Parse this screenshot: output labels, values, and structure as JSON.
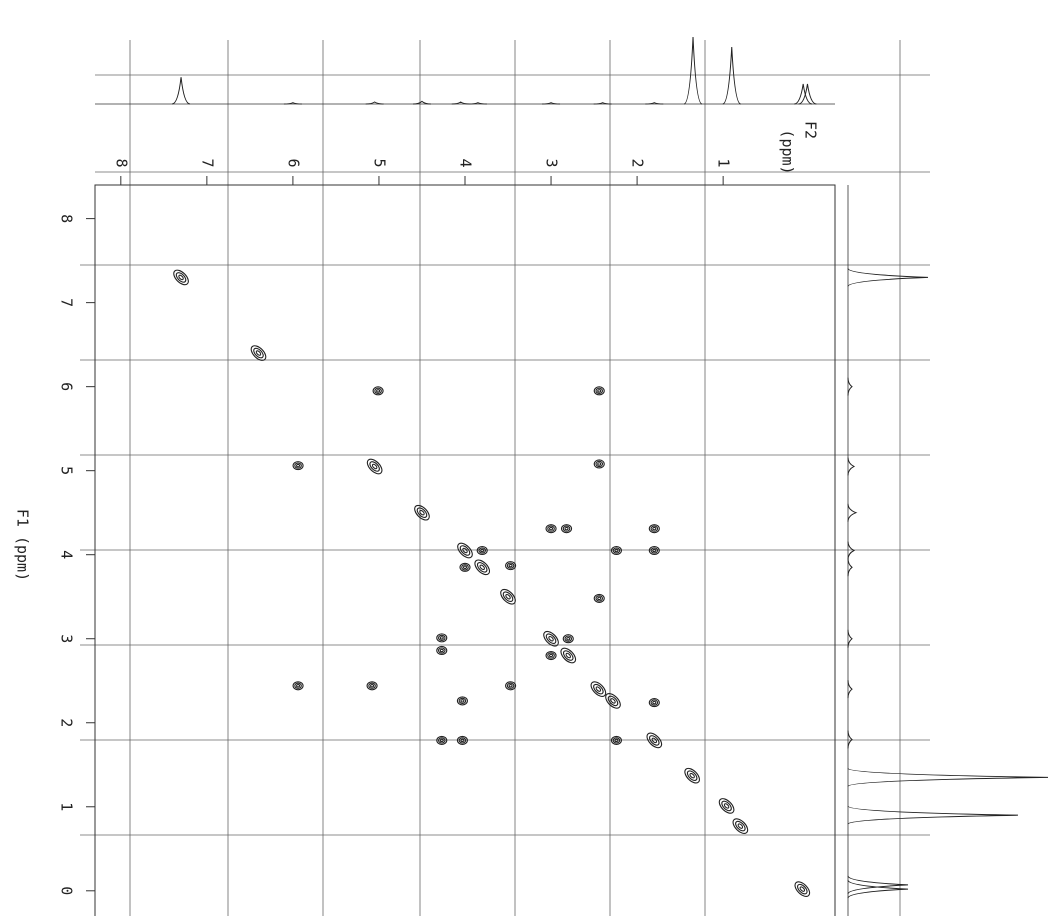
{
  "chart_data": {
    "type": "contour",
    "xlabel": "F2",
    "xunit": "(ppm)",
    "ylabel": "F1 (ppm)",
    "xlim": [
      8.3,
      -0.3
    ],
    "ylim": [
      8.4,
      -0.3
    ],
    "xticks": [
      8,
      7,
      6,
      5,
      4,
      3,
      2,
      1
    ],
    "yticks": [
      8,
      7,
      6,
      5,
      4,
      3,
      2,
      1,
      0
    ],
    "color": "#222222",
    "peaks": {
      "f2": [
        7.3,
        6.4,
        5.05,
        4.5,
        4.0,
        3.8,
        4.0,
        3.8,
        3.5,
        3.0,
        2.8,
        3.0,
        2.8,
        2.45,
        2.28,
        1.8,
        1.36,
        0.96,
        0.8,
        0.08,
        5.01,
        2.44,
        5.94,
        2.44,
        3.0,
        2.82,
        1.8,
        2.24,
        1.8,
        3.47,
        2.44,
        4.27,
        4.27,
        5.94,
        5.08,
        4.03,
        4.03,
        4.27,
        3.47,
        1.8,
        2.24
      ],
      "f1": [
        7.3,
        6.4,
        5.05,
        4.5,
        4.05,
        4.05,
        3.85,
        3.85,
        3.5,
        3.0,
        3.0,
        2.8,
        2.8,
        2.4,
        2.26,
        1.79,
        1.37,
        1.01,
        0.77,
        0.02,
        5.95,
        5.95,
        5.06,
        5.08,
        4.31,
        4.31,
        4.31,
        4.05,
        4.05,
        3.87,
        3.48,
        3.01,
        2.86,
        2.44,
        2.44,
        2.26,
        1.79,
        1.79,
        2.44,
        2.24,
        1.79
      ],
      "diagonal": [
        true,
        true,
        true,
        true,
        true,
        false,
        false,
        true,
        true,
        true,
        false,
        false,
        true,
        true,
        true,
        true,
        true,
        true,
        true,
        true,
        false,
        false,
        false,
        false,
        false,
        false,
        false,
        false,
        false,
        false,
        false,
        false,
        false,
        false,
        false,
        false,
        false,
        false,
        false,
        false,
        false
      ]
    },
    "projection": {
      "ppm": [
        7.3,
        1.35,
        0.9,
        0.07,
        0.02,
        4.5,
        4.05,
        5.05,
        6.0,
        3.0,
        2.4,
        3.85,
        1.8
      ],
      "intensity": [
        40,
        100,
        85,
        30,
        30,
        4,
        3,
        3,
        2,
        2,
        2,
        2,
        2
      ]
    }
  }
}
